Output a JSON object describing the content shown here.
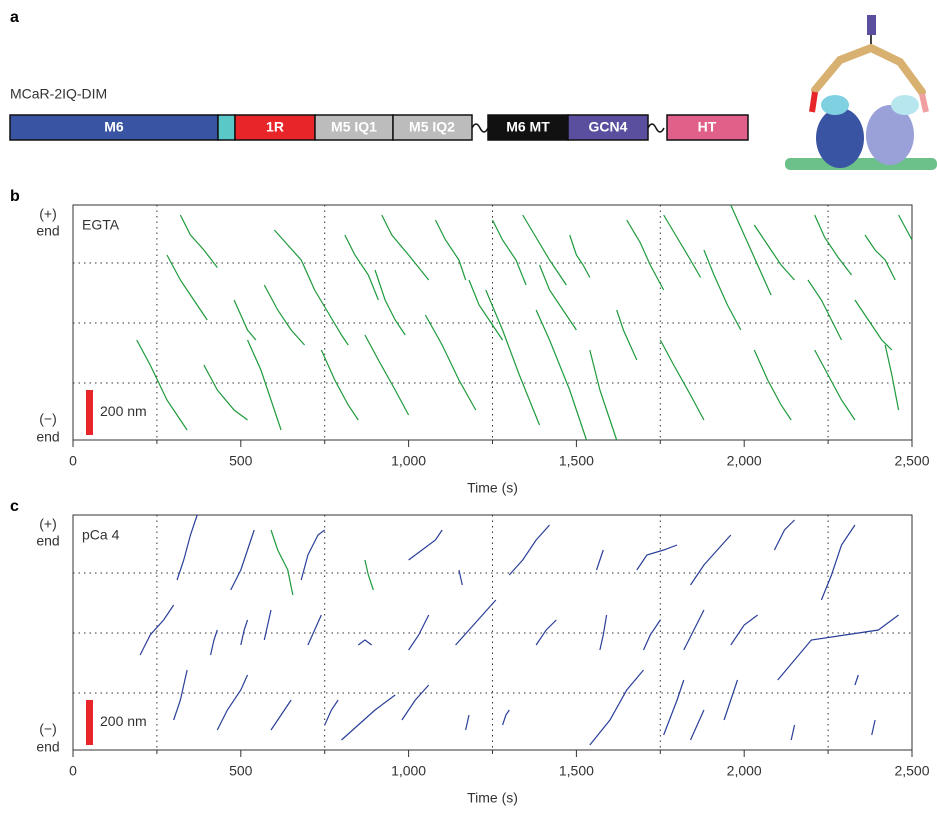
{
  "panel_a": {
    "label": "a",
    "construct": "MCaR-2IQ-DIM",
    "segments": [
      "M6",
      "1R",
      "M5 IQ1",
      "M5 IQ2",
      "M6 MT",
      "GCN4",
      "HT"
    ]
  },
  "chart_data": [
    {
      "type": "line",
      "panel_label": "b",
      "annotation": "EGTA",
      "plus_end": [
        "(+)",
        "end"
      ],
      "minus_end": [
        "(−)",
        "end"
      ],
      "color": "#1e9a3c",
      "scale_bar": {
        "value": 200,
        "label": "200 nm"
      },
      "scale_bar_color": "#e8262a",
      "xlabel": "Time (s)",
      "xlim": [
        0,
        2500
      ],
      "ylim": [
        0,
        940
      ],
      "xticks": [
        0,
        500,
        {
          "value": 1000,
          "label": "1,000"
        },
        {
          "value": 1500,
          "label": "1,500"
        },
        {
          "value": 2000,
          "label": "2,000"
        },
        {
          "value": 2500,
          "label": "2,500"
        }
      ],
      "grid_x": [
        250,
        750,
        1250,
        1750,
        2250
      ],
      "grid_y": [
        228,
        468,
        708
      ],
      "traces": [
        {
          "x": [
            320,
            350,
            390,
            430
          ],
          "y": [
            900,
            820,
            760,
            690
          ]
        },
        {
          "x": [
            600,
            640,
            680,
            720
          ],
          "y": [
            840,
            780,
            720,
            600
          ]
        },
        {
          "x": [
            810,
            840,
            880,
            910
          ],
          "y": [
            820,
            740,
            660,
            560
          ]
        },
        {
          "x": [
            920,
            950,
            1000,
            1060
          ],
          "y": [
            900,
            820,
            740,
            640
          ]
        },
        {
          "x": [
            1080,
            1110,
            1150,
            1170
          ],
          "y": [
            880,
            800,
            720,
            640
          ]
        },
        {
          "x": [
            1250,
            1280,
            1320,
            1350
          ],
          "y": [
            880,
            800,
            720,
            620
          ]
        },
        {
          "x": [
            1340,
            1380,
            1420,
            1470
          ],
          "y": [
            900,
            810,
            720,
            620
          ]
        },
        {
          "x": [
            1480,
            1500,
            1520,
            1540
          ],
          "y": [
            820,
            740,
            700,
            650
          ]
        },
        {
          "x": [
            1650,
            1690,
            1720,
            1760
          ],
          "y": [
            880,
            790,
            700,
            600
          ]
        },
        {
          "x": [
            1760,
            1800,
            1840,
            1870
          ],
          "y": [
            900,
            810,
            720,
            650
          ]
        },
        {
          "x": [
            1960,
            2000,
            2040,
            2080
          ],
          "y": [
            940,
            820,
            700,
            580
          ]
        },
        {
          "x": [
            2030,
            2070,
            2110,
            2150
          ],
          "y": [
            860,
            780,
            700,
            640
          ]
        },
        {
          "x": [
            2210,
            2240,
            2280,
            2320
          ],
          "y": [
            900,
            810,
            730,
            660
          ]
        },
        {
          "x": [
            2360,
            2390,
            2420,
            2450
          ],
          "y": [
            820,
            760,
            720,
            640
          ]
        },
        {
          "x": [
            2460,
            2480,
            2500
          ],
          "y": [
            900,
            850,
            800
          ]
        },
        {
          "x": [
            280,
            320,
            360,
            400
          ],
          "y": [
            740,
            640,
            560,
            480
          ]
        },
        {
          "x": [
            480,
            500,
            520,
            545
          ],
          "y": [
            560,
            500,
            440,
            400
          ]
        },
        {
          "x": [
            570,
            610,
            650,
            690
          ],
          "y": [
            620,
            520,
            440,
            380
          ]
        },
        {
          "x": [
            720,
            760,
            800,
            820
          ],
          "y": [
            600,
            510,
            420,
            380
          ]
        },
        {
          "x": [
            900,
            930,
            960,
            990
          ],
          "y": [
            680,
            560,
            480,
            420
          ]
        },
        {
          "x": [
            1180,
            1210,
            1250,
            1280
          ],
          "y": [
            640,
            540,
            460,
            400
          ]
        },
        {
          "x": [
            1390,
            1420,
            1460,
            1500
          ],
          "y": [
            700,
            600,
            520,
            440
          ]
        },
        {
          "x": [
            1620,
            1640,
            1660,
            1680
          ],
          "y": [
            520,
            440,
            380,
            320
          ]
        },
        {
          "x": [
            1880,
            1910,
            1950,
            1990
          ],
          "y": [
            760,
            660,
            540,
            440
          ]
        },
        {
          "x": [
            2190,
            2230,
            2260,
            2290
          ],
          "y": [
            640,
            560,
            480,
            400
          ]
        },
        {
          "x": [
            2330,
            2370,
            2410,
            2440
          ],
          "y": [
            560,
            480,
            400,
            360
          ]
        },
        {
          "x": [
            190,
            230,
            280,
            340
          ],
          "y": [
            400,
            300,
            160,
            40
          ]
        },
        {
          "x": [
            390,
            430,
            480,
            520
          ],
          "y": [
            300,
            200,
            120,
            80
          ]
        },
        {
          "x": [
            520,
            560,
            600,
            620
          ],
          "y": [
            400,
            280,
            120,
            40
          ]
        },
        {
          "x": [
            740,
            780,
            820,
            850
          ],
          "y": [
            360,
            240,
            140,
            80
          ]
        },
        {
          "x": [
            870,
            910,
            960,
            1000
          ],
          "y": [
            420,
            320,
            200,
            100
          ]
        },
        {
          "x": [
            1050,
            1100,
            1150,
            1200
          ],
          "y": [
            500,
            380,
            240,
            120
          ]
        },
        {
          "x": [
            1230,
            1280,
            1330,
            1390
          ],
          "y": [
            600,
            440,
            260,
            60
          ]
        },
        {
          "x": [
            1380,
            1420,
            1480,
            1530
          ],
          "y": [
            520,
            400,
            200,
            0
          ]
        },
        {
          "x": [
            1540,
            1570,
            1600,
            1620
          ],
          "y": [
            360,
            200,
            80,
            0
          ]
        },
        {
          "x": [
            1750,
            1790,
            1840,
            1880
          ],
          "y": [
            400,
            300,
            180,
            80
          ]
        },
        {
          "x": [
            2030,
            2070,
            2110,
            2140
          ],
          "y": [
            360,
            240,
            140,
            80
          ]
        },
        {
          "x": [
            2210,
            2250,
            2290,
            2330
          ],
          "y": [
            360,
            260,
            160,
            80
          ]
        },
        {
          "x": [
            2420,
            2440,
            2460
          ],
          "y": [
            380,
            260,
            120
          ]
        }
      ]
    },
    {
      "type": "line",
      "panel_label": "c",
      "annotation": "pCa 4",
      "plus_end": [
        "(+)",
        "end"
      ],
      "minus_end": [
        "(−)",
        "end"
      ],
      "color": "#2a3f9a",
      "scale_bar": {
        "value": 200,
        "label": "200 nm"
      },
      "scale_bar_color": "#e8262a",
      "xlabel": "Time (s)",
      "xlim": [
        0,
        2500
      ],
      "ylim": [
        0,
        940
      ],
      "xticks": [
        0,
        500,
        {
          "value": 1000,
          "label": "1,000"
        },
        {
          "value": 1500,
          "label": "1,500"
        },
        {
          "value": 2000,
          "label": "2,000"
        },
        {
          "value": 2500,
          "label": "2,500"
        }
      ],
      "grid_x": [
        250,
        750,
        1250,
        1750,
        2250
      ],
      "grid_y": [
        228,
        468,
        708
      ],
      "traces": [
        {
          "x": [
            310,
            330,
            350,
            370
          ],
          "y": [
            680,
            760,
            860,
            940
          ]
        },
        {
          "x": [
            470,
            500,
            520,
            540
          ],
          "y": [
            640,
            720,
            800,
            880
          ]
        },
        {
          "x": [
            590,
            610,
            640,
            655
          ],
          "y": [
            880,
            800,
            720,
            620
          ],
          "color": "#1e9a3c"
        },
        {
          "x": [
            680,
            700,
            730,
            750
          ],
          "y": [
            680,
            780,
            860,
            880
          ]
        },
        {
          "x": [
            870,
            880,
            895
          ],
          "y": [
            760,
            700,
            640
          ],
          "color": "#1e9a3c"
        },
        {
          "x": [
            1000,
            1040,
            1080,
            1100
          ],
          "y": [
            760,
            800,
            840,
            880
          ]
        },
        {
          "x": [
            1150,
            1160
          ],
          "y": [
            720,
            660
          ]
        },
        {
          "x": [
            1300,
            1340,
            1380,
            1420
          ],
          "y": [
            700,
            760,
            840,
            900
          ]
        },
        {
          "x": [
            1560,
            1570,
            1580
          ],
          "y": [
            720,
            760,
            800
          ]
        },
        {
          "x": [
            1680,
            1710,
            1760,
            1800
          ],
          "y": [
            720,
            780,
            800,
            820
          ]
        },
        {
          "x": [
            1840,
            1880,
            1920,
            1960
          ],
          "y": [
            660,
            740,
            800,
            860
          ]
        },
        {
          "x": [
            2090,
            2120,
            2150
          ],
          "y": [
            800,
            880,
            920
          ]
        },
        {
          "x": [
            2230,
            2260,
            2290,
            2330
          ],
          "y": [
            600,
            700,
            820,
            900
          ]
        },
        {
          "x": [
            200,
            230,
            270,
            300
          ],
          "y": [
            380,
            460,
            520,
            580
          ]
        },
        {
          "x": [
            410,
            420,
            430
          ],
          "y": [
            380,
            440,
            480
          ]
        },
        {
          "x": [
            500,
            510,
            520
          ],
          "y": [
            420,
            480,
            520
          ]
        },
        {
          "x": [
            570,
            580,
            590
          ],
          "y": [
            440,
            500,
            560
          ]
        },
        {
          "x": [
            700,
            720,
            740
          ],
          "y": [
            420,
            480,
            540
          ]
        },
        {
          "x": [
            850,
            870,
            890
          ],
          "y": [
            420,
            440,
            420
          ]
        },
        {
          "x": [
            1000,
            1030,
            1060
          ],
          "y": [
            400,
            460,
            540
          ]
        },
        {
          "x": [
            1140,
            1180,
            1220,
            1260
          ],
          "y": [
            420,
            480,
            540,
            600
          ]
        },
        {
          "x": [
            1380,
            1410,
            1440
          ],
          "y": [
            420,
            480,
            520
          ]
        },
        {
          "x": [
            1570,
            1580,
            1590
          ],
          "y": [
            400,
            460,
            540
          ]
        },
        {
          "x": [
            1700,
            1720,
            1750
          ],
          "y": [
            400,
            460,
            520
          ]
        },
        {
          "x": [
            1820,
            1850,
            1880
          ],
          "y": [
            400,
            480,
            560
          ]
        },
        {
          "x": [
            1960,
            2000,
            2040
          ],
          "y": [
            420,
            500,
            540
          ]
        },
        {
          "x": [
            2100,
            2200,
            2300,
            2400,
            2460
          ],
          "y": [
            280,
            440,
            460,
            480,
            540
          ]
        },
        {
          "x": [
            300,
            320,
            340
          ],
          "y": [
            120,
            200,
            320
          ]
        },
        {
          "x": [
            430,
            460,
            500,
            520
          ],
          "y": [
            80,
            160,
            240,
            300
          ]
        },
        {
          "x": [
            590,
            620,
            650
          ],
          "y": [
            80,
            140,
            200
          ]
        },
        {
          "x": [
            750,
            770,
            790
          ],
          "y": [
            100,
            160,
            200
          ]
        },
        {
          "x": [
            800,
            850,
            900,
            960
          ],
          "y": [
            40,
            100,
            160,
            220
          ]
        },
        {
          "x": [
            980,
            1020,
            1060
          ],
          "y": [
            120,
            200,
            260
          ]
        },
        {
          "x": [
            1170,
            1180
          ],
          "y": [
            80,
            140
          ]
        },
        {
          "x": [
            1280,
            1290,
            1300
          ],
          "y": [
            100,
            140,
            160
          ]
        },
        {
          "x": [
            1540,
            1600,
            1650,
            1700
          ],
          "y": [
            20,
            120,
            240,
            320
          ]
        },
        {
          "x": [
            1760,
            1800,
            1820
          ],
          "y": [
            60,
            200,
            280
          ]
        },
        {
          "x": [
            1840,
            1860,
            1880
          ],
          "y": [
            40,
            100,
            160
          ]
        },
        {
          "x": [
            1940,
            1960,
            1980
          ],
          "y": [
            120,
            200,
            280
          ]
        },
        {
          "x": [
            2140,
            2150
          ],
          "y": [
            40,
            100
          ]
        },
        {
          "x": [
            2330,
            2340
          ],
          "y": [
            260,
            300
          ]
        },
        {
          "x": [
            2380,
            2390
          ],
          "y": [
            60,
            120
          ]
        }
      ]
    }
  ]
}
